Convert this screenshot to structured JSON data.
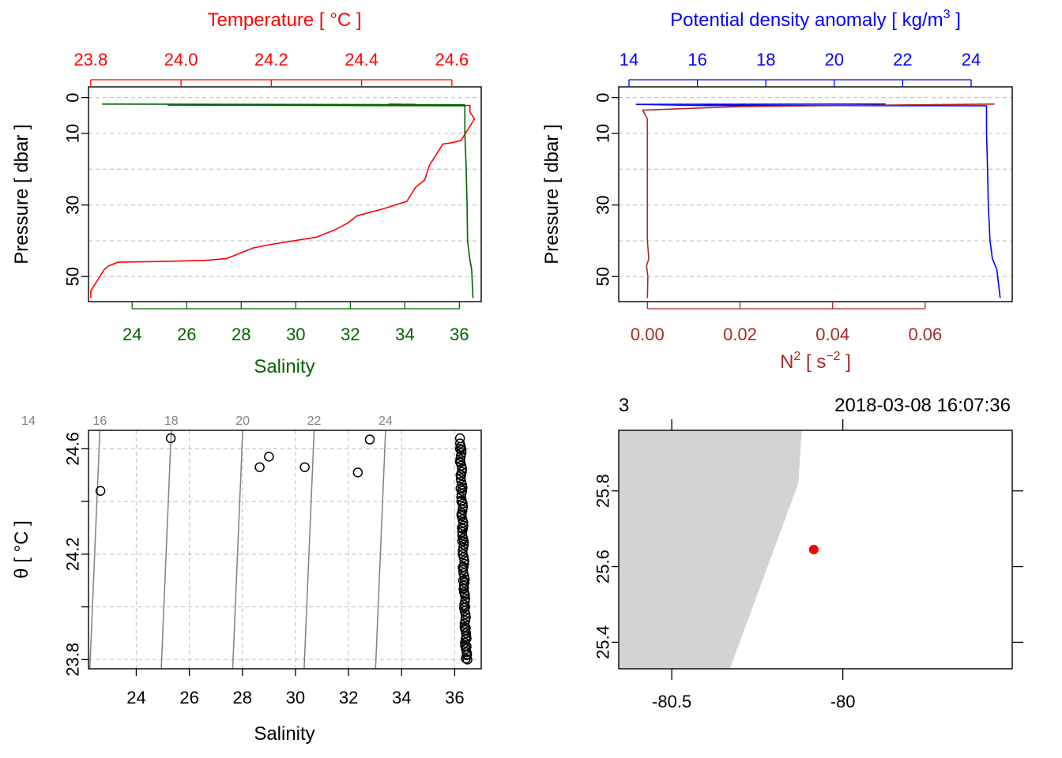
{
  "colors": {
    "temperature": "#ff0000",
    "salinity": "#006400",
    "density": "#0000ff",
    "n2": "#a52a2a",
    "isopycnal": "#808080",
    "grid": "#c8c8c8",
    "land": "#d3d3d3",
    "station": "#ff0000"
  },
  "chart_data": [
    {
      "type": "line",
      "panel": "profile-temperature-salinity",
      "y_axis": {
        "label": "Pressure [ dbar ]",
        "range": [
          57,
          -3
        ],
        "ticks": [
          "0",
          "10",
          "30",
          "50"
        ],
        "reversed": true
      },
      "top_axis": {
        "label": "Temperature [ °C ]",
        "range": [
          23.795,
          24.665
        ],
        "ticks": [
          "23.8",
          "24.0",
          "24.2",
          "24.4",
          "24.6"
        ]
      },
      "bottom_axis": {
        "label": "Salinity",
        "range": [
          22.4,
          36.8
        ],
        "ticks": [
          "24",
          "26",
          "28",
          "30",
          "32",
          "34",
          "36"
        ]
      },
      "grid": true,
      "series": [
        {
          "name": "Temperature",
          "axis": "top",
          "points": [
            [
              24.46,
              1.8
            ],
            [
              24.52,
              1.9
            ],
            [
              24.5,
              2.2
            ],
            [
              24.64,
              2.2
            ],
            [
              24.64,
              4
            ],
            [
              24.65,
              6
            ],
            [
              24.64,
              8
            ],
            [
              24.63,
              10
            ],
            [
              24.62,
              12
            ],
            [
              24.6,
              12.6
            ],
            [
              24.58,
              13
            ],
            [
              24.57,
              15
            ],
            [
              24.56,
              17
            ],
            [
              24.55,
              19
            ],
            [
              24.545,
              21
            ],
            [
              24.54,
              23
            ],
            [
              24.52,
              25
            ],
            [
              24.51,
              27
            ],
            [
              24.5,
              29
            ],
            [
              24.45,
              31
            ],
            [
              24.42,
              32
            ],
            [
              24.39,
              33
            ],
            [
              24.37,
              35
            ],
            [
              24.34,
              37
            ],
            [
              24.3,
              39
            ],
            [
              24.25,
              40
            ],
            [
              24.2,
              41
            ],
            [
              24.16,
              42
            ],
            [
              24.14,
              43
            ],
            [
              24.12,
              44
            ],
            [
              24.1,
              45
            ],
            [
              24.05,
              45.5
            ],
            [
              23.95,
              45.8
            ],
            [
              23.86,
              46
            ],
            [
              23.84,
              47
            ],
            [
              23.83,
              48
            ],
            [
              23.82,
              50
            ],
            [
              23.81,
              52
            ],
            [
              23.8,
              54
            ],
            [
              23.8,
              56
            ]
          ]
        },
        {
          "name": "Salinity",
          "axis": "bottom",
          "points": [
            [
              22.9,
              1.8
            ],
            [
              36.2,
              2.0
            ],
            [
              25.3,
              2.1
            ],
            [
              36.2,
              2.3
            ],
            [
              36.2,
              10
            ],
            [
              36.25,
              20
            ],
            [
              36.28,
              30
            ],
            [
              36.3,
              40
            ],
            [
              36.38,
              45
            ],
            [
              36.45,
              48
            ],
            [
              36.5,
              56
            ]
          ]
        }
      ]
    },
    {
      "type": "line",
      "panel": "profile-density-n2",
      "y_axis": {
        "label": "Pressure [ dbar ]",
        "range": [
          57,
          -3
        ],
        "ticks": [
          "0",
          "10",
          "30",
          "50"
        ],
        "reversed": true
      },
      "top_axis": {
        "label_main": "Potential density anomaly [ kg/m",
        "label_sup": "3",
        "label_end": " ]",
        "range": [
          13.7,
          25.2
        ],
        "ticks": [
          "14",
          "16",
          "18",
          "20",
          "22",
          "24"
        ]
      },
      "bottom_axis": {
        "label_main": "N",
        "label_sup": "2",
        "label_mid": " [ s",
        "label_sup2": "−2",
        "label_end": " ]",
        "range": [
          -0.0062,
          0.0788
        ],
        "ticks": [
          "0.00",
          "0.02",
          "0.04",
          "0.06"
        ]
      },
      "grid": true,
      "series": [
        {
          "name": "Potential density anomaly",
          "axis": "top",
          "points": [
            [
              21.5,
              1.8
            ],
            [
              14.2,
              1.9
            ],
            [
              16.1,
              2.2
            ],
            [
              24.45,
              2.3
            ],
            [
              24.45,
              10
            ],
            [
              24.48,
              20
            ],
            [
              24.5,
              30
            ],
            [
              24.55,
              40
            ],
            [
              24.62,
              45
            ],
            [
              24.75,
              48
            ],
            [
              24.85,
              56
            ]
          ]
        },
        {
          "name": "N2",
          "axis": "bottom",
          "points": [
            [
              0.075,
              1.8
            ],
            [
              0.02,
              2.5
            ],
            [
              -0.001,
              3.5
            ],
            [
              0.0,
              6
            ],
            [
              0.0,
              20
            ],
            [
              0.0,
              40
            ],
            [
              0.0003,
              45
            ],
            [
              -0.0002,
              47
            ],
            [
              0.0001,
              50
            ],
            [
              0.0,
              56
            ]
          ]
        }
      ]
    },
    {
      "type": "scatter",
      "panel": "ts-diagram",
      "x_axis": {
        "label": "Salinity",
        "range": [
          22.2,
          37.0
        ],
        "ticks": [
          "24",
          "26",
          "28",
          "30",
          "32",
          "34",
          "36"
        ]
      },
      "y_axis": {
        "label": "θ [ °C ]",
        "range": [
          23.765,
          24.67
        ],
        "ticks": [
          "23.8",
          "24.2",
          "24.6"
        ]
      },
      "isopycnals": {
        "labels": [
          "14",
          "16",
          "18",
          "20",
          "22",
          "24"
        ],
        "values": [
          14,
          16,
          18,
          20,
          22,
          24
        ]
      },
      "grid": true,
      "points": [
        [
          22.65,
          24.44
        ],
        [
          25.3,
          24.64
        ],
        [
          28.65,
          24.53
        ],
        [
          29.0,
          24.57
        ],
        [
          30.35,
          24.53
        ],
        [
          32.35,
          24.51
        ],
        [
          32.8,
          24.635
        ],
        [
          36.2,
          24.64
        ],
        [
          36.2,
          24.6
        ],
        [
          36.2,
          24.55
        ],
        [
          36.22,
          24.5
        ],
        [
          36.22,
          24.45
        ],
        [
          36.25,
          24.4
        ],
        [
          36.25,
          24.35
        ],
        [
          36.27,
          24.3
        ],
        [
          36.28,
          24.25
        ],
        [
          36.3,
          24.2
        ],
        [
          36.3,
          24.15
        ],
        [
          36.32,
          24.1
        ],
        [
          36.35,
          24.07
        ],
        [
          36.38,
          24.05
        ],
        [
          36.4,
          24.0
        ],
        [
          36.42,
          23.96
        ],
        [
          36.42,
          23.92
        ],
        [
          36.45,
          23.88
        ],
        [
          36.45,
          23.85
        ],
        [
          36.47,
          23.82
        ],
        [
          36.48,
          23.8
        ]
      ]
    },
    {
      "type": "scatter",
      "panel": "station-map",
      "x_axis": {
        "range": [
          -80.655,
          -79.505
        ],
        "ticks": [
          "-80.5",
          "-80"
        ]
      },
      "y_axis": {
        "range": [
          25.33,
          25.96
        ],
        "ticks": [
          "25.4",
          "25.6",
          "25.8"
        ]
      },
      "header_left": "3",
      "header_right": "2018-03-08 16:07:36",
      "land": [
        [
          -80.655,
          25.96
        ],
        [
          -80.12,
          25.96
        ],
        [
          -80.13,
          25.82
        ],
        [
          -80.33,
          25.33
        ],
        [
          -80.655,
          25.33
        ]
      ],
      "station": [
        -80.085,
        25.645
      ]
    }
  ]
}
